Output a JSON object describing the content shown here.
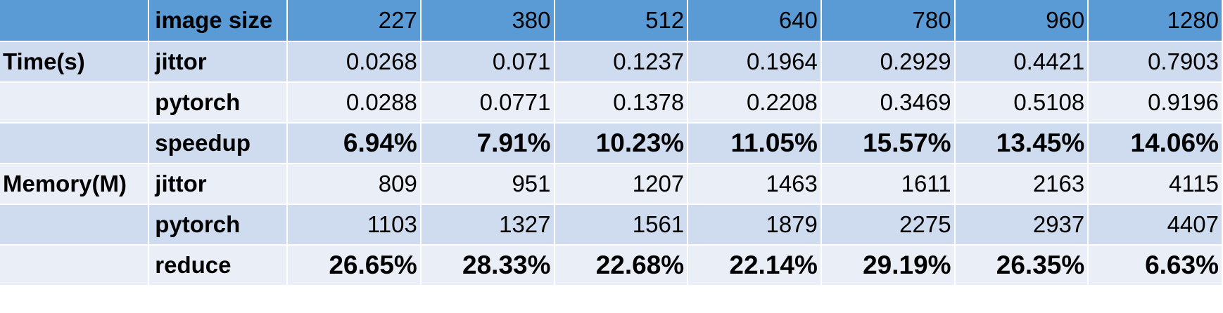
{
  "table": {
    "header": {
      "group": "",
      "label": "image size",
      "columns": [
        "227",
        "380",
        "512",
        "640",
        "780",
        "960",
        "1280"
      ]
    },
    "rows": [
      {
        "group": "Time(s)",
        "metric": "jittor",
        "values": [
          "0.0268",
          "0.071",
          "0.1237",
          "0.1964",
          "0.2929",
          "0.4421",
          "0.7903"
        ],
        "emphasis": false
      },
      {
        "group": "",
        "metric": "pytorch",
        "values": [
          "0.0288",
          "0.0771",
          "0.1378",
          "0.2208",
          "0.3469",
          "0.5108",
          "0.9196"
        ],
        "emphasis": false
      },
      {
        "group": "",
        "metric": "speedup",
        "values": [
          "6.94%",
          "7.91%",
          "10.23%",
          "11.05%",
          "15.57%",
          "13.45%",
          "14.06%"
        ],
        "emphasis": true
      },
      {
        "group": "Memory(M)",
        "metric": "jittor",
        "values": [
          "809",
          "951",
          "1207",
          "1463",
          "1611",
          "2163",
          "4115"
        ],
        "emphasis": false
      },
      {
        "group": "",
        "metric": "pytorch",
        "values": [
          "1103",
          "1327",
          "1561",
          "1879",
          "2275",
          "2937",
          "4407"
        ],
        "emphasis": false
      },
      {
        "group": "",
        "metric": "reduce",
        "values": [
          "26.65%",
          "28.33%",
          "22.68%",
          "22.14%",
          "29.19%",
          "26.35%",
          "6.63%"
        ],
        "emphasis": true
      }
    ]
  },
  "colors": {
    "header_bg": "#5b9bd5",
    "row_dark_bg": "#cfdbee",
    "row_light_bg": "#e9eef7",
    "border": "#ffffff"
  }
}
